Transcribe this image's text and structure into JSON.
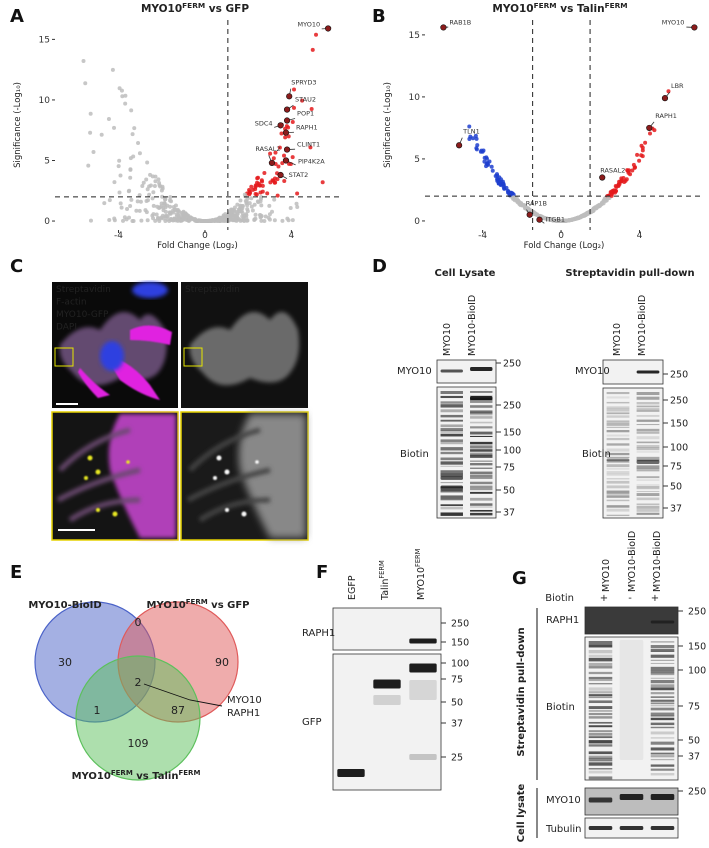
{
  "chart_data": [
    {
      "type": "scatter",
      "panel": "A",
      "title": [
        {
          "text": "MYO10"
        },
        {
          "text": "FERM",
          "sup": true
        },
        {
          "text": " vs GFP"
        }
      ],
      "x_label": "Fold Change (Log₂)",
      "y_label": "Significance (-Log₁₀)",
      "labels": [
        "MYO10",
        "SPRYD3",
        "STAU2",
        "POP1",
        "SDC4",
        "RAPH1",
        "CLINT1",
        "RASAL2",
        "PIP4K2A",
        "STAT2"
      ],
      "x": [
        5.7,
        3.9,
        3.8,
        3.8,
        3.5,
        3.75,
        3.8,
        3.1,
        3.75,
        3.5
      ],
      "y": [
        15.9,
        10.3,
        9.2,
        8.3,
        7.9,
        7.3,
        5.9,
        4.8,
        5.0,
        3.8
      ],
      "color": "#8b1c1c",
      "colors": {
        "up": "#e41a1c",
        "ns": "#bdbdbd"
      },
      "xlim": [
        -6.94,
        6.25
      ],
      "ylim": [
        -0.74,
        16.6
      ],
      "xticks": [
        -4,
        0,
        4
      ],
      "yticks": [
        0,
        5,
        10,
        15
      ],
      "thresholds": {
        "x": [
          1.06
        ],
        "y": [
          2
        ]
      }
    },
    {
      "type": "scatter",
      "panel": "B",
      "title": [
        {
          "text": "MYO10"
        },
        {
          "text": "FERM",
          "sup": true
        },
        {
          "text": " vs Talin"
        },
        {
          "text": "FERM",
          "sup": true
        }
      ],
      "x_label": "Fold Change (Log₂)",
      "y_label": "Significance (-Log₁₀)",
      "labels": [
        "RAB1B",
        "MYO10",
        "LBR",
        "RAPH1",
        "TLN1",
        "RASAL2",
        "RAP1B",
        "ITGB1"
      ],
      "x": [
        -6.0,
        6.8,
        5.3,
        4.5,
        -5.2,
        2.1,
        -1.6,
        -1.1
      ],
      "y": [
        15.6,
        15.6,
        9.9,
        7.5,
        6.1,
        3.5,
        0.5,
        0.1
      ],
      "color": "#8b1c1c",
      "colors": {
        "up": "#e41a1c",
        "down": "#1f3fcf",
        "ns": "#bdbdbd"
      },
      "xlim": [
        -6.94,
        7.24
      ],
      "ylim": [
        -0.73,
        16.2
      ],
      "xticks": [
        -4,
        0,
        4
      ],
      "yticks": [
        0,
        5,
        10,
        15
      ],
      "thresholds": {
        "x": [
          -1.45,
          1.48
        ],
        "y": [
          2
        ]
      }
    }
  ],
  "panel_c": {
    "letter": "C",
    "channels": [
      {
        "text": "Streptavidin",
        "color": "#2fe02f"
      },
      {
        "text": "F-actin",
        "color": "#ff33ff"
      },
      {
        "text": "MYO10-GFP",
        "color": "#ff2a2a"
      },
      {
        "text": "DAPI",
        "color": "#3a5cff"
      }
    ],
    "single_channel": "Streptavidin"
  },
  "panel_d": {
    "letter": "D",
    "blots": [
      {
        "title": "Cell Lysate",
        "lanes": [
          "MYO10",
          "MYO10-BioID"
        ],
        "rows": [
          {
            "label": "MYO10",
            "markers": [
              250
            ]
          },
          {
            "label": "Biotin",
            "markers": [
              250,
              150,
              100,
              75,
              50,
              37
            ]
          }
        ]
      },
      {
        "title": "Streptavidin pull-down",
        "lanes": [
          "MYO10",
          "MYO10-BioID"
        ],
        "rows": [
          {
            "label": "MYO10",
            "markers": [
              250
            ]
          },
          {
            "label": "Biotin",
            "markers": [
              250,
              150,
              100,
              75,
              50,
              37
            ]
          }
        ]
      }
    ]
  },
  "panel_e": {
    "letter": "E",
    "sets": [
      {
        "label": "MYO10-BioID",
        "color": "#4a62c8"
      },
      {
        "label": [
          {
            "text": "MYO10"
          },
          {
            "text": "FERM",
            "sup": true
          },
          {
            "text": " vs GFP"
          }
        ],
        "color": "#e05a5a"
      },
      {
        "label": [
          {
            "text": "MYO10"
          },
          {
            "text": "FERM",
            "sup": true
          },
          {
            "text": " vs Talin"
          },
          {
            "text": "FERM",
            "sup": true
          }
        ],
        "color": "#5cc05c"
      }
    ],
    "counts": [
      30,
      0,
      90,
      2,
      1,
      87,
      109
    ],
    "callout": [
      "MYO10",
      "RAPH1"
    ]
  },
  "panel_f": {
    "letter": "F",
    "lanes": [
      [
        {
          "text": "EGFP"
        }
      ],
      [
        {
          "text": "Talin"
        },
        {
          "text": "FERM",
          "sup": true
        }
      ],
      [
        {
          "text": "MYO10"
        },
        {
          "text": "FERM",
          "sup": true
        }
      ]
    ],
    "rows": [
      {
        "label": "RAPH1",
        "markers": [
          250,
          150
        ]
      },
      {
        "label": "GFP",
        "markers": [
          100,
          75,
          50,
          37,
          25
        ]
      }
    ]
  },
  "panel_g": {
    "letter": "G",
    "treatment": {
      "label": "Biotin",
      "values": [
        "+",
        "-",
        "+"
      ]
    },
    "lanes": [
      "MYO10",
      "MYO10-BioID",
      "MYO10-BioID"
    ],
    "groups": [
      {
        "label": "Streptavidin pull-down",
        "rows": [
          {
            "label": "RAPH1",
            "markers": [
              250
            ]
          },
          {
            "label": "Biotin",
            "markers": [
              150,
              100,
              75,
              50,
              37
            ]
          }
        ]
      },
      {
        "label": "Cell lysate",
        "rows": [
          {
            "label": "MYO10",
            "markers": [
              250
            ]
          },
          {
            "label": "Tubulin"
          }
        ]
      }
    ]
  }
}
